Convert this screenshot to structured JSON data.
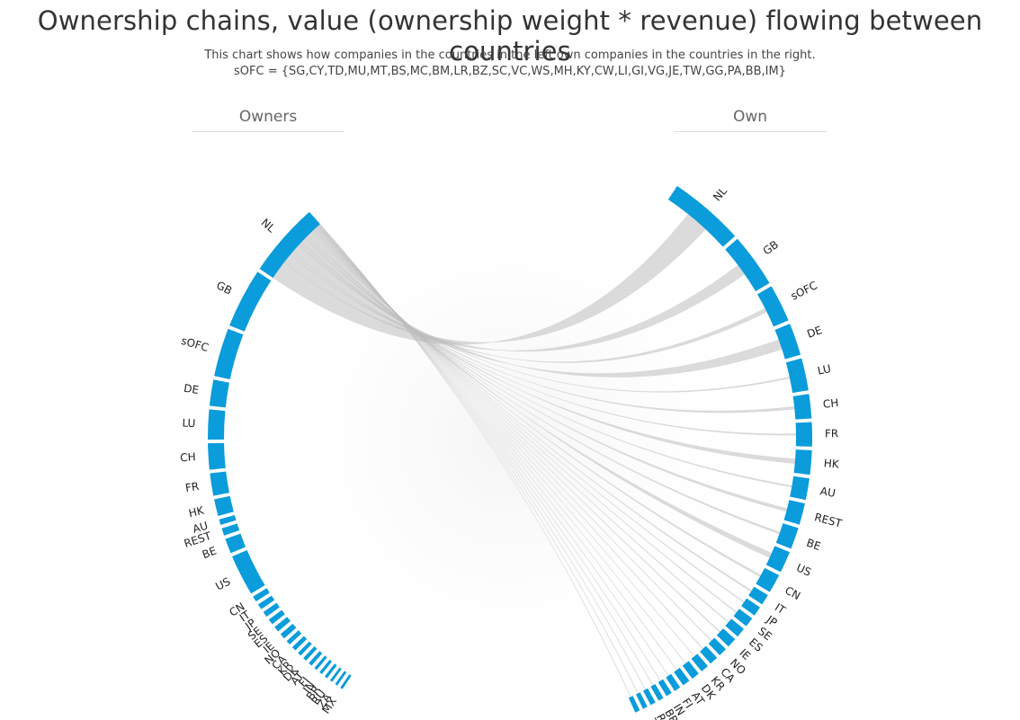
{
  "header": {
    "title": "Ownership chains, value (ownership weight * revenue) flowing between countries",
    "subtitle_line1": "This chart shows how companies in the countries in the left own companies in the countries in the right.",
    "subtitle_line2": "sOFC = {SG,CY,TD,MU,MT,BS,MC,BM,LR,BZ,SC,VC,WS,MH,KY,CW,LI,GI,VG,JE,TW,GG,PA,BB,IM}"
  },
  "sides": {
    "owners_label": "Owners",
    "own_label": "Own"
  },
  "colors": {
    "arc": "#0a9cdb",
    "ribbon": "#bdbdbd",
    "background": "#ffffff"
  },
  "chart_data": {
    "type": "chord",
    "title": "Ownership chains, value (ownership weight * revenue) flowing between countries",
    "left_side": "Owners",
    "right_side": "Own",
    "owners": [
      {
        "label": "NL",
        "value": 20
      },
      {
        "label": "GB",
        "value": 16
      },
      {
        "label": "sOFC",
        "value": 13
      },
      {
        "label": "DE",
        "value": 7
      },
      {
        "label": "LU",
        "value": 8
      },
      {
        "label": "CH",
        "value": 7
      },
      {
        "label": "FR",
        "value": 6
      },
      {
        "label": "HK",
        "value": 4.5
      },
      {
        "label": "AU",
        "value": 1.5
      },
      {
        "label": "REST",
        "value": 2
      },
      {
        "label": "BE",
        "value": 4
      },
      {
        "label": "US",
        "value": 11
      },
      {
        "label": "CN",
        "value": 1.5
      },
      {
        "label": "IT",
        "value": 1.5
      },
      {
        "label": "JP",
        "value": 1.5
      },
      {
        "label": "SE",
        "value": 1.5
      },
      {
        "label": "ES",
        "value": 1.5
      },
      {
        "label": "IE",
        "value": 1.5
      },
      {
        "label": "NO",
        "value": 1.2
      },
      {
        "label": "CA",
        "value": 1.2
      },
      {
        "label": "KR",
        "value": 1.0
      },
      {
        "label": "DK",
        "value": 1.0
      },
      {
        "label": "AT",
        "value": 1.0
      },
      {
        "label": "FI",
        "value": 0.8
      },
      {
        "label": "IN",
        "value": 0.8
      },
      {
        "label": "BR",
        "value": 0.8
      },
      {
        "label": "RU",
        "value": 0.7
      },
      {
        "label": "ZA",
        "value": 0.7
      },
      {
        "label": "MX",
        "value": 0.7
      }
    ],
    "owned": [
      {
        "label": "NL",
        "value": 14
      },
      {
        "label": "GB",
        "value": 10
      },
      {
        "label": "sOFC",
        "value": 7
      },
      {
        "label": "DE",
        "value": 6
      },
      {
        "label": "LU",
        "value": 6
      },
      {
        "label": "CH",
        "value": 4.5
      },
      {
        "label": "FR",
        "value": 4.5
      },
      {
        "label": "HK",
        "value": 4.5
      },
      {
        "label": "AU",
        "value": 4
      },
      {
        "label": "REST",
        "value": 4
      },
      {
        "label": "BE",
        "value": 4
      },
      {
        "label": "US",
        "value": 4
      },
      {
        "label": "CN",
        "value": 3.5
      },
      {
        "label": "IT",
        "value": 2
      },
      {
        "label": "JP",
        "value": 1.8
      },
      {
        "label": "SE",
        "value": 1.8
      },
      {
        "label": "ES",
        "value": 1.8
      },
      {
        "label": "IE",
        "value": 1.8
      },
      {
        "label": "NO",
        "value": 1.6
      },
      {
        "label": "CA",
        "value": 1.6
      },
      {
        "label": "KR",
        "value": 1.5
      },
      {
        "label": "DK",
        "value": 1.5
      },
      {
        "label": "AT",
        "value": 1.4
      },
      {
        "label": "FI",
        "value": 1.2
      },
      {
        "label": "IN",
        "value": 1.1
      },
      {
        "label": "BR",
        "value": 1.0
      },
      {
        "label": "RU",
        "value": 1.0
      },
      {
        "label": "ZA",
        "value": 0.9
      },
      {
        "label": "MX",
        "value": 0.9
      }
    ],
    "flows_shown_from": "NL",
    "flows": [
      {
        "from": "NL",
        "to": "NL",
        "value": 4.5
      },
      {
        "from": "NL",
        "to": "GB",
        "value": 2.2
      },
      {
        "from": "NL",
        "to": "sOFC",
        "value": 0.8
      },
      {
        "from": "NL",
        "to": "DE",
        "value": 2.0
      },
      {
        "from": "NL",
        "to": "LU",
        "value": 0.3
      },
      {
        "from": "NL",
        "to": "CH",
        "value": 0.5
      },
      {
        "from": "NL",
        "to": "FR",
        "value": 0.3
      },
      {
        "from": "NL",
        "to": "HK",
        "value": 0.9
      },
      {
        "from": "NL",
        "to": "AU",
        "value": 0.3
      },
      {
        "from": "NL",
        "to": "REST",
        "value": 0.6
      },
      {
        "from": "NL",
        "to": "BE",
        "value": 0.4
      },
      {
        "from": "NL",
        "to": "US",
        "value": 1.0
      },
      {
        "from": "NL",
        "to": "CN",
        "value": 0.4
      },
      {
        "from": "NL",
        "to": "IT",
        "value": 0.3
      },
      {
        "from": "NL",
        "to": "JP",
        "value": 0.2
      },
      {
        "from": "NL",
        "to": "SE",
        "value": 0.2
      },
      {
        "from": "NL",
        "to": "ES",
        "value": 0.2
      },
      {
        "from": "NL",
        "to": "IE",
        "value": 0.2
      },
      {
        "from": "NL",
        "to": "NO",
        "value": 0.15
      },
      {
        "from": "NL",
        "to": "CA",
        "value": 0.15
      },
      {
        "from": "NL",
        "to": "KR",
        "value": 0.1
      },
      {
        "from": "NL",
        "to": "DK",
        "value": 0.1
      },
      {
        "from": "NL",
        "to": "AT",
        "value": 0.1
      },
      {
        "from": "NL",
        "to": "FI",
        "value": 0.1
      },
      {
        "from": "NL",
        "to": "IN",
        "value": 0.1
      },
      {
        "from": "NL",
        "to": "BR",
        "value": 0.1
      },
      {
        "from": "NL",
        "to": "RU",
        "value": 0.1
      },
      {
        "from": "NL",
        "to": "ZA",
        "value": 0.1
      },
      {
        "from": "NL",
        "to": "MX",
        "value": 0.1
      }
    ]
  }
}
